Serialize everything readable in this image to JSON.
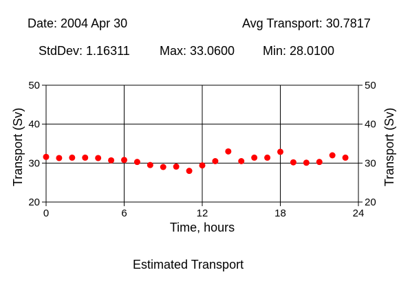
{
  "header": {
    "date_label": "Date: 2004 Apr 30",
    "avg_label": "Avg Transport: 30.7817",
    "stddev_label": "StdDev: 1.16311",
    "max_label": "Max: 33.0600",
    "min_label": "Min: 28.0100"
  },
  "caption": "Estimated Transport",
  "chart_data": {
    "type": "scatter",
    "title": "",
    "xlabel": "Time, hours",
    "ylabel": "Transport (Sv)",
    "ylabel_right": "Transport (Sv)",
    "xlim": [
      0,
      24
    ],
    "ylim": [
      20,
      50
    ],
    "xticks": [
      0,
      6,
      12,
      18,
      24
    ],
    "yticks": [
      20,
      30,
      40,
      50
    ],
    "grid": true,
    "marker_color": "#ff0000",
    "series": [
      {
        "x": [
          0,
          1,
          2,
          3,
          4,
          5,
          6,
          7,
          8,
          9,
          10,
          11,
          12,
          13,
          14,
          15,
          16,
          17,
          18,
          19,
          20,
          21,
          22,
          23
        ],
        "y": [
          31.6,
          31.3,
          31.4,
          31.4,
          31.3,
          30.7,
          30.8,
          30.3,
          29.5,
          29.0,
          29.1,
          28.0,
          29.4,
          30.5,
          33.0,
          30.5,
          31.4,
          31.4,
          32.9,
          30.2,
          30.1,
          30.3,
          32.0,
          31.4
        ]
      }
    ]
  }
}
